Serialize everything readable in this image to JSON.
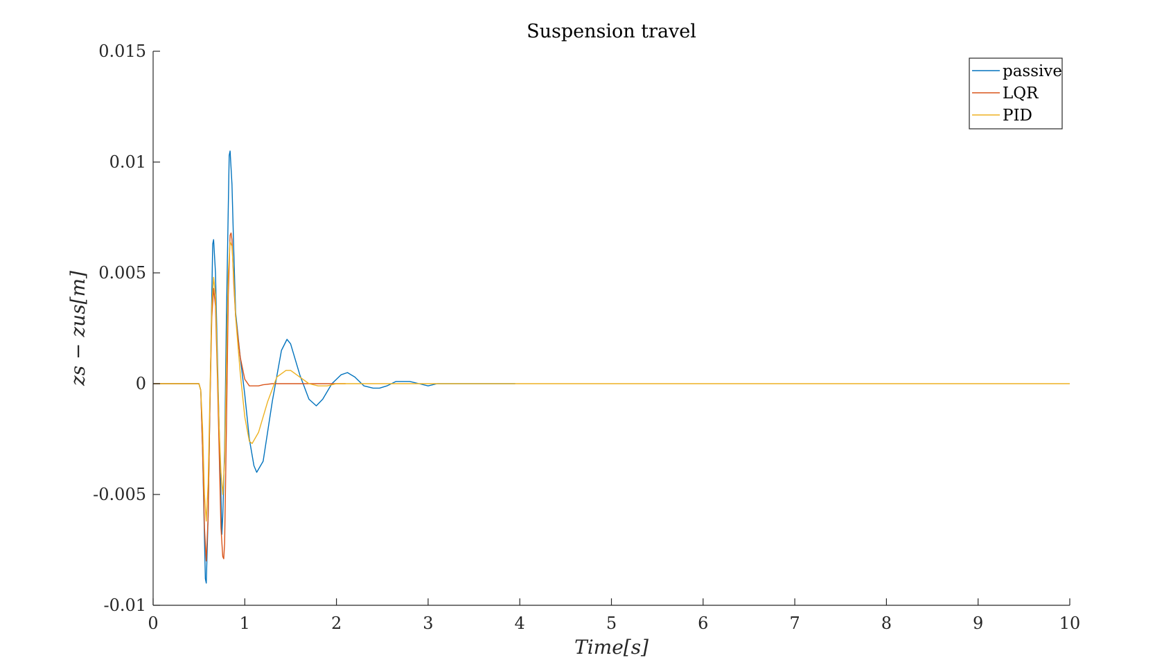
{
  "chart_data": {
    "type": "line",
    "title": "Suspension travel",
    "xlabel": "Time[s]",
    "ylabel": "zs − zus[m]",
    "xlim": [
      0,
      10
    ],
    "ylim": [
      -0.01,
      0.015
    ],
    "xticks": [
      0,
      1,
      2,
      3,
      4,
      5,
      6,
      7,
      8,
      9,
      10
    ],
    "xtick_labels": [
      "0",
      "1",
      "2",
      "3",
      "4",
      "5",
      "6",
      "7",
      "8",
      "9",
      "10"
    ],
    "yticks": [
      -0.01,
      -0.005,
      0,
      0.005,
      0.01,
      0.015
    ],
    "ytick_labels": [
      "-0.01",
      "-0.005",
      "0",
      "0.005",
      "0.01",
      "0.015"
    ],
    "grid": false,
    "legend_position": "top-right",
    "series": [
      {
        "name": "passive",
        "color": "#0072bd",
        "x": [
          0,
          0.5,
          0.52,
          0.54,
          0.56,
          0.57,
          0.58,
          0.6,
          0.62,
          0.64,
          0.65,
          0.66,
          0.68,
          0.7,
          0.72,
          0.74,
          0.75,
          0.76,
          0.78,
          0.8,
          0.82,
          0.83,
          0.84,
          0.86,
          0.88,
          0.9,
          0.95,
          1.0,
          1.05,
          1.1,
          1.13,
          1.2,
          1.3,
          1.4,
          1.46,
          1.5,
          1.6,
          1.7,
          1.78,
          1.85,
          1.95,
          2.05,
          2.12,
          2.2,
          2.3,
          2.4,
          2.47,
          2.55,
          2.65,
          2.75,
          2.8,
          2.9,
          3.0,
          3.1,
          3.15,
          3.3,
          3.45,
          3.6,
          3.75,
          3.9,
          3.95
        ],
        "y": [
          0,
          0,
          -0.0003,
          -0.003,
          -0.007,
          -0.0088,
          -0.009,
          -0.006,
          -0.001,
          0.004,
          0.0063,
          0.0065,
          0.005,
          0.0015,
          -0.002,
          -0.005,
          -0.0068,
          -0.006,
          -0.003,
          0.003,
          0.008,
          0.0103,
          0.0105,
          0.009,
          0.006,
          0.0032,
          0.0012,
          -0.0005,
          -0.0025,
          -0.0037,
          -0.004,
          -0.0035,
          -0.0008,
          0.0015,
          0.002,
          0.0018,
          0.0004,
          -0.0007,
          -0.001,
          -0.0007,
          0,
          0.0004,
          0.0005,
          0.0003,
          -0.0001,
          -0.0002,
          -0.0002,
          -0.0001,
          0.0001,
          0.0001,
          0.0001,
          0,
          -0.0001,
          0,
          0,
          0,
          0,
          0,
          0,
          0,
          0
        ]
      },
      {
        "name": "LQR",
        "color": "#d95319",
        "x": [
          0,
          0.5,
          0.52,
          0.54,
          0.56,
          0.58,
          0.6,
          0.62,
          0.64,
          0.66,
          0.68,
          0.7,
          0.72,
          0.74,
          0.76,
          0.77,
          0.78,
          0.8,
          0.82,
          0.84,
          0.85,
          0.86,
          0.88,
          0.9,
          0.95,
          1.0,
          1.05,
          1.1,
          1.15,
          1.2,
          1.3,
          1.5,
          1.8,
          2.1
        ],
        "y": [
          0,
          0,
          -0.0003,
          -0.003,
          -0.0065,
          -0.008,
          -0.006,
          -0.001,
          0.003,
          0.0043,
          0.0035,
          0.0005,
          -0.003,
          -0.0065,
          -0.0078,
          -0.0079,
          -0.0072,
          -0.002,
          0.004,
          0.0067,
          0.0068,
          0.0065,
          0.0045,
          0.003,
          0.0012,
          0.0002,
          -0.0001,
          -0.0001,
          -0.0001,
          -5e-05,
          0,
          0,
          0,
          0
        ]
      },
      {
        "name": "PID",
        "color": "#edb120",
        "x": [
          0,
          0.5,
          0.52,
          0.54,
          0.56,
          0.58,
          0.6,
          0.62,
          0.64,
          0.66,
          0.68,
          0.7,
          0.72,
          0.74,
          0.76,
          0.78,
          0.8,
          0.82,
          0.84,
          0.86,
          0.88,
          0.9,
          0.95,
          1.0,
          1.05,
          1.08,
          1.15,
          1.25,
          1.35,
          1.45,
          1.5,
          1.6,
          1.7,
          1.8,
          1.9,
          2.0,
          2.2,
          2.5,
          3.0,
          10
        ],
        "y": [
          0,
          0,
          -0.0003,
          -0.002,
          -0.005,
          -0.0062,
          -0.0045,
          -0.0005,
          0.0035,
          0.0048,
          0.004,
          0.001,
          -0.002,
          -0.004,
          -0.005,
          -0.0035,
          0.001,
          0.005,
          0.0064,
          0.0062,
          0.0048,
          0.003,
          0.0005,
          -0.0015,
          -0.0026,
          -0.0027,
          -0.0022,
          -0.0008,
          0.0003,
          0.0006,
          0.0006,
          0.0003,
          0,
          -0.0001,
          -0.0001,
          0,
          0,
          0,
          0,
          0
        ]
      }
    ]
  }
}
